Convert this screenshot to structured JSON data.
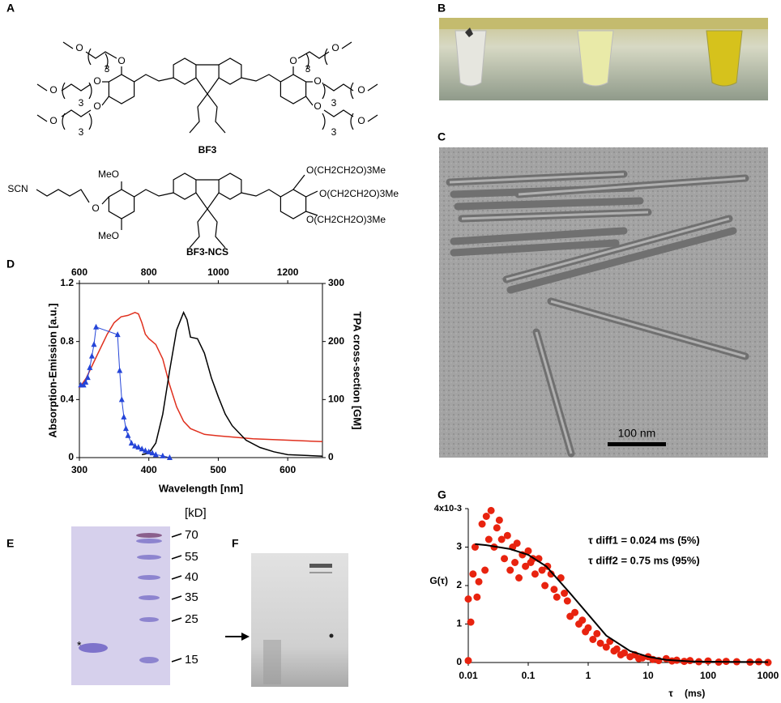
{
  "panels": {
    "A": {
      "label": "A",
      "bf3": {
        "name": "BF3",
        "atoms": [
          "O",
          "O",
          "3",
          "O",
          "O",
          "3",
          "O",
          "O",
          "3",
          "O",
          "O",
          "3",
          "O",
          "O",
          "3",
          "O",
          "O",
          "3"
        ]
      },
      "bf3_ncs": {
        "name": "BF3-NCS",
        "atoms": [
          "SCN",
          "MeO",
          "O",
          "MeO",
          "O(CH2CH2O)3Me",
          "O(CH2CH2O)3Me",
          "O(CH2CH2O)3Me"
        ]
      }
    },
    "B": {
      "label": "B"
    },
    "C": {
      "label": "C",
      "scale_bar": "100 nm"
    },
    "E": {
      "label": "E",
      "unit": "[kD]",
      "markers": [
        70,
        55,
        40,
        35,
        25,
        15
      ],
      "band_mark": "*"
    },
    "F": {
      "label": "F"
    }
  },
  "chart_data": [
    {
      "type": "line",
      "label": "D",
      "xlabel": "Wavelength [nm]",
      "ylabel": "Absorption-Emission [a.u.]",
      "y2label": "TPA cross-section [GM]",
      "xlim": [
        300,
        650
      ],
      "xticks": [
        300,
        400,
        500,
        600
      ],
      "x2lim": [
        600,
        1300
      ],
      "x2ticks": [
        600,
        800,
        1000,
        1200
      ],
      "ylim": [
        0,
        1.2
      ],
      "yticks": [
        0,
        0.4,
        0.8,
        1.2
      ],
      "y2lim": [
        0,
        300
      ],
      "y2ticks": [
        0,
        100,
        200,
        300
      ],
      "series": [
        {
          "color": "#e0301e",
          "x": [
            300,
            310,
            320,
            330,
            340,
            350,
            360,
            370,
            380,
            385,
            390,
            395,
            400,
            410,
            420,
            430,
            440,
            450,
            460,
            480,
            500,
            550,
            600,
            650
          ],
          "values": [
            0.48,
            0.55,
            0.65,
            0.75,
            0.85,
            0.93,
            0.97,
            0.98,
            1.0,
            0.99,
            0.93,
            0.85,
            0.82,
            0.78,
            0.68,
            0.5,
            0.35,
            0.25,
            0.2,
            0.16,
            0.15,
            0.13,
            0.12,
            0.11
          ]
        },
        {
          "color": "#000000",
          "x": [
            390,
            400,
            410,
            420,
            430,
            440,
            450,
            455,
            460,
            470,
            480,
            490,
            500,
            510,
            520,
            540,
            560,
            580,
            600,
            650
          ],
          "values": [
            0.02,
            0.03,
            0.1,
            0.3,
            0.6,
            0.88,
            1.0,
            0.95,
            0.83,
            0.82,
            0.72,
            0.55,
            0.42,
            0.3,
            0.22,
            0.12,
            0.07,
            0.04,
            0.02,
            0.01
          ]
        },
        {
          "color": "#2545d8",
          "marker": "triangle",
          "axis": "y2",
          "xaxis": "x2",
          "x": [
            604,
            612,
            618,
            624,
            630,
            636,
            642,
            648,
            710,
            716,
            722,
            728,
            734,
            740,
            750,
            760,
            770,
            780,
            790,
            800,
            810,
            820,
            840,
            860
          ],
          "values": [
            125,
            125,
            130,
            138,
            155,
            175,
            195,
            225,
            212,
            150,
            100,
            70,
            50,
            38,
            25,
            20,
            18,
            15,
            12,
            10,
            8,
            5,
            3,
            0
          ]
        }
      ]
    },
    {
      "type": "scatter",
      "label": "G",
      "xlabel_symbol": "τ",
      "xlabel": "(ms)",
      "ylabel": "G(τ)",
      "xscale": "log",
      "xlim": [
        0.01,
        1000
      ],
      "xticks": [
        0.01,
        0.1,
        1,
        10,
        100,
        1000
      ],
      "ylim": [
        0,
        4
      ],
      "yticks": [
        0,
        1,
        2,
        3,
        {
          "value": 4,
          "label": "4x10-3"
        }
      ],
      "annotations": [
        "τ diff1 = 0.024 ms (5%)",
        "τ diff2 = 0.75 ms (95%)"
      ],
      "series": [
        {
          "type": "scatter",
          "color": "#e8230f",
          "x": [
            0.01,
            0.01,
            0.011,
            0.012,
            0.013,
            0.014,
            0.015,
            0.017,
            0.019,
            0.02,
            0.022,
            0.024,
            0.027,
            0.03,
            0.033,
            0.036,
            0.04,
            0.045,
            0.05,
            0.055,
            0.06,
            0.065,
            0.07,
            0.08,
            0.09,
            0.1,
            0.11,
            0.12,
            0.13,
            0.15,
            0.17,
            0.19,
            0.21,
            0.24,
            0.27,
            0.3,
            0.35,
            0.4,
            0.45,
            0.5,
            0.6,
            0.7,
            0.8,
            0.9,
            1,
            1.2,
            1.4,
            1.6,
            2,
            2.3,
            2.7,
            3,
            3.5,
            4,
            5,
            6,
            7,
            8,
            10,
            12,
            15,
            20,
            25,
            30,
            40,
            50,
            70,
            100,
            150,
            200,
            300,
            500,
            700,
            1000
          ],
          "values": [
            1.65,
            0.05,
            1.05,
            2.3,
            3.0,
            1.7,
            2.1,
            3.6,
            2.4,
            3.8,
            3.2,
            3.95,
            3.0,
            3.5,
            3.7,
            3.2,
            2.7,
            3.3,
            2.4,
            3.0,
            2.6,
            3.1,
            2.2,
            2.8,
            2.5,
            2.9,
            2.6,
            2.7,
            2.3,
            2.7,
            2.4,
            2.0,
            2.5,
            2.3,
            1.9,
            1.7,
            2.2,
            1.8,
            1.6,
            1.2,
            1.3,
            1.0,
            1.1,
            0.8,
            0.9,
            0.6,
            0.75,
            0.5,
            0.4,
            0.55,
            0.3,
            0.35,
            0.2,
            0.25,
            0.15,
            0.2,
            0.1,
            0.12,
            0.15,
            0.08,
            0.05,
            0.1,
            0.04,
            0.06,
            0.03,
            0.05,
            0.02,
            0.04,
            0.01,
            0.03,
            0.02,
            0.01,
            0.02,
            0.0
          ]
        },
        {
          "type": "line",
          "color": "#000000",
          "x": [
            0.013,
            0.02,
            0.05,
            0.1,
            0.2,
            0.5,
            1,
            2,
            5,
            10,
            20,
            50,
            100,
            1000
          ],
          "values": [
            3.08,
            3.05,
            2.95,
            2.8,
            2.5,
            1.8,
            1.25,
            0.7,
            0.3,
            0.15,
            0.07,
            0.03,
            0.02,
            0.01
          ]
        }
      ]
    }
  ]
}
